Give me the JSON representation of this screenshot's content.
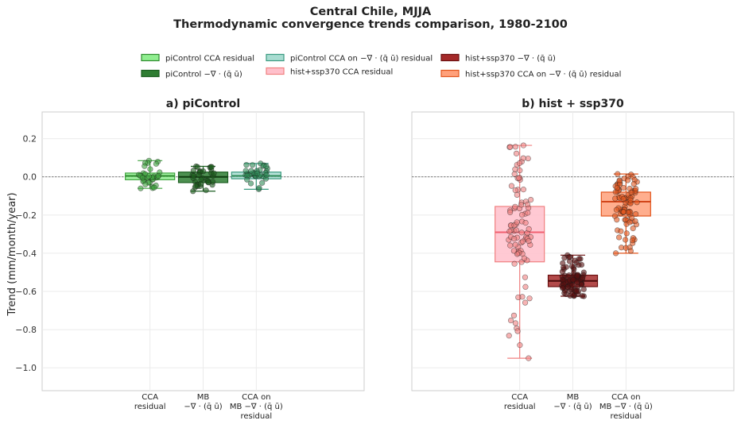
{
  "figure": {
    "title_line1": "Central Chile, MJJA",
    "title_line2": "Thermodynamic convergence trends comparison, 1980-2100",
    "ylabel": "Trend (mm/month/year)"
  },
  "legend": [
    {
      "label": "piControl CCA residual",
      "fill": "#90ee90",
      "stroke": "#2e8b2e"
    },
    {
      "label": "piControl −∇ · (q̄ ū)",
      "fill": "#2e7d32",
      "stroke": "#1b5e20"
    },
    {
      "label": "piControl CCA on −∇ · (q̄ ū) residual",
      "fill": "#a8dcd1",
      "stroke": "#3a9a80"
    },
    {
      "label": "hist+ssp370 CCA residual",
      "fill": "#ffc0cb",
      "stroke": "#f08080"
    },
    {
      "label": "hist+ssp370 −∇ · (q̄ ū)",
      "fill": "#a52a2a",
      "stroke": "#6b0f0f"
    },
    {
      "label": "hist+ssp370 CCA on −∇ · (q̄ ū) residual",
      "fill": "#ffa07a",
      "stroke": "#e2561e"
    }
  ],
  "colors": {
    "picontrol_cca_points": "#3fa33f",
    "picontrol_mb_points": "#1e5e1e",
    "picontrol_ccamb_points": "#2e8b57",
    "hist_cca_points": "#f08080",
    "hist_mb_points": "#5a1010",
    "hist_ccamb_points": "#e25822"
  },
  "chart_data": [
    {
      "type": "box",
      "title": "a) piControl",
      "ylim": [
        -1.12,
        0.34
      ],
      "yticks": [
        "0.2",
        "0.0",
        "−0.2",
        "−0.4",
        "−0.6",
        "−0.8",
        "−1.0"
      ],
      "ytick_values": [
        0.2,
        0.0,
        -0.2,
        -0.4,
        -0.6,
        -0.8,
        -1.0
      ],
      "grid": true,
      "zero_line": true,
      "categories": [
        [
          "CCA",
          "residual"
        ],
        [
          "MB",
          "−∇ · (q̄ ū)"
        ],
        [
          "CCA on",
          "MB −∇ · (q̄ ū)",
          "residual"
        ]
      ],
      "boxes": [
        {
          "whislo": -0.06,
          "q1": -0.015,
          "med": 0.005,
          "q3": 0.02,
          "whishi": 0.085
        },
        {
          "whislo": -0.075,
          "q1": -0.03,
          "med": 0.0,
          "q3": 0.025,
          "whishi": 0.055
        },
        {
          "whislo": -0.065,
          "q1": -0.01,
          "med": 0.005,
          "q3": 0.025,
          "whishi": 0.07
        }
      ]
    },
    {
      "type": "box",
      "title": "b) hist + ssp370",
      "ylim": [
        -1.12,
        0.34
      ],
      "grid": true,
      "zero_line": true,
      "categories": [
        [
          "CCA",
          "residual"
        ],
        [
          "MB",
          "−∇ · (q̄ ū)"
        ],
        [
          "CCA on",
          "MB −∇ · (q̄ ū)",
          "residual"
        ]
      ],
      "boxes": [
        {
          "whislo": -0.95,
          "q1": -0.445,
          "med": -0.29,
          "q3": -0.155,
          "whishi": 0.165
        },
        {
          "whislo": -0.625,
          "q1": -0.575,
          "med": -0.545,
          "q3": -0.515,
          "whishi": -0.41
        },
        {
          "whislo": -0.4,
          "q1": -0.205,
          "med": -0.13,
          "q3": -0.08,
          "whishi": 0.015
        }
      ]
    }
  ]
}
